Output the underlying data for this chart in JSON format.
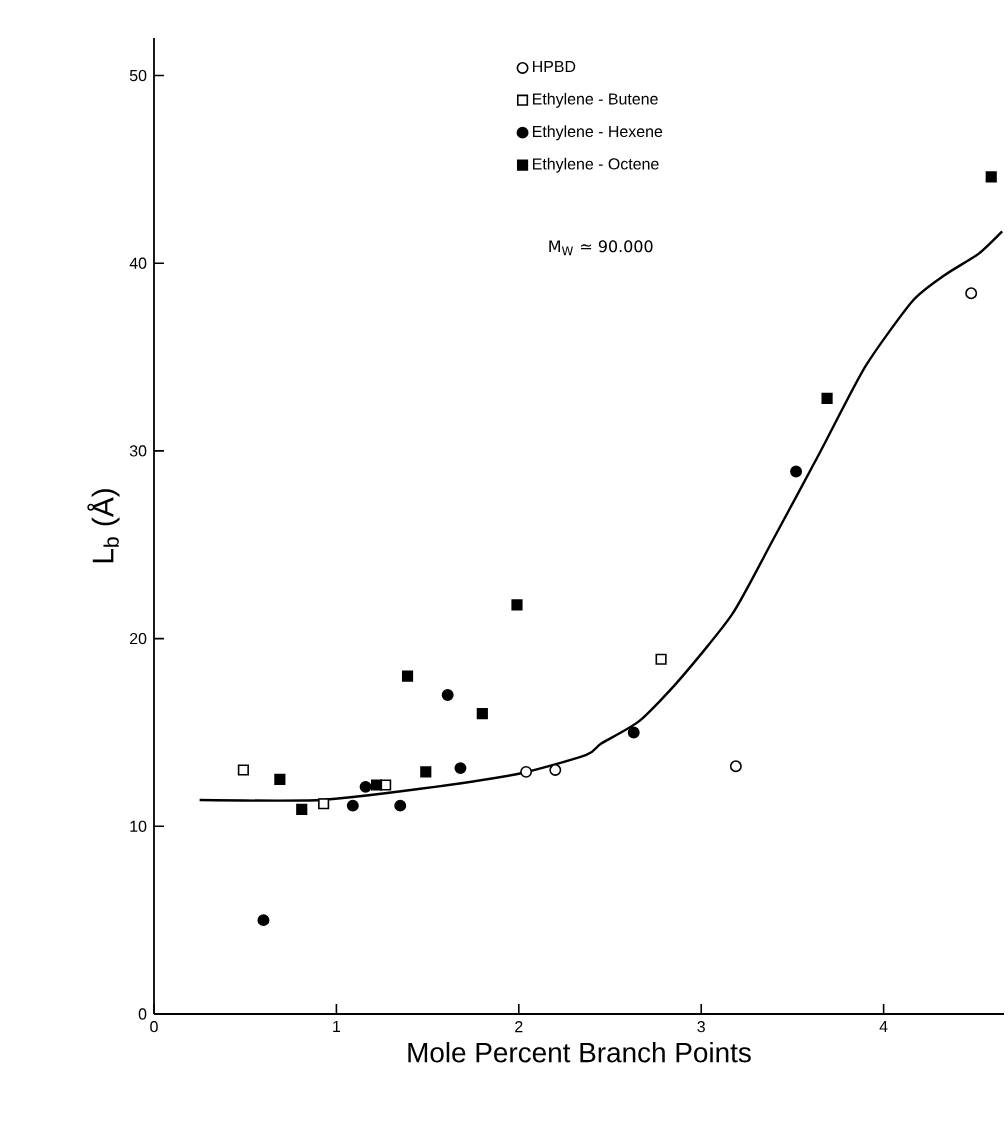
{
  "chart_data": {
    "type": "scatter",
    "xlabel": "Mole Percent Branch Points",
    "ylabel": "L$_{b}$ (Å)",
    "xlim": [
      0,
      4.66
    ],
    "ylim": [
      0,
      52
    ],
    "xticks": [
      0,
      1,
      2,
      3,
      4
    ],
    "yticks": [
      0,
      10,
      20,
      30,
      40,
      50
    ],
    "legend": "top right",
    "grid": false,
    "annotations": [
      "M$_{W}$ ≃ 90.000"
    ],
    "series": [
      {
        "name": "HPBD",
        "color": "#ffffff",
        "marker": "circle",
        "x": [
          2.04,
          2.2,
          3.19,
          4.48
        ],
        "values": [
          12.9,
          13.0,
          13.2,
          38.4
        ]
      },
      {
        "name": "Ethylene - Butene",
        "color": "#ffffff",
        "marker": "square",
        "x": [
          0.49,
          0.93,
          1.27,
          2.78
        ],
        "values": [
          13.0,
          11.2,
          12.2,
          18.9
        ]
      },
      {
        "name": "Ethylene - Hexene",
        "color": "#000000",
        "marker": "circle",
        "x": [
          0.6,
          1.09,
          1.16,
          1.35,
          1.61,
          1.68,
          2.63,
          3.52
        ],
        "values": [
          5.0,
          11.1,
          12.1,
          11.1,
          17.0,
          13.1,
          15.0,
          28.9
        ]
      },
      {
        "name": "Ethylene - Octene",
        "color": "#000000",
        "marker": "square",
        "x": [
          0.69,
          0.81,
          1.22,
          1.39,
          1.49,
          1.8,
          1.99,
          3.69,
          4.59
        ],
        "values": [
          12.5,
          10.9,
          12.2,
          18.0,
          12.9,
          16.0,
          21.8,
          32.8,
          44.6
        ]
      },
      {
        "type": "line",
        "color": "#000000",
        "marker": "none",
        "line_style": "solid",
        "x": [
          0.25,
          0.91,
          1.46,
          2.0,
          2.37,
          2.45,
          2.66,
          2.88,
          3.17,
          3.39,
          3.65,
          3.9,
          4.16,
          4.34,
          4.52,
          4.65
        ],
        "values": [
          11.4,
          11.4,
          12.0,
          12.8,
          13.8,
          14.4,
          15.6,
          17.8,
          21.3,
          25.2,
          29.9,
          34.5,
          38.0,
          39.4,
          40.5,
          41.7
        ]
      }
    ]
  }
}
